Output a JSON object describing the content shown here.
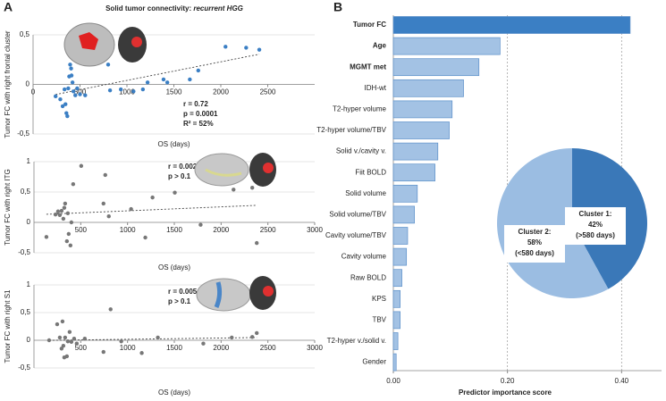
{
  "chart_data": [
    {
      "type": "scatter",
      "panel_label": "A",
      "title": "Solid tumor connectivity: ",
      "title_italic": "recurrent HGG",
      "ylabel": "Tumor FC with right frontal cluster",
      "xlabel": "OS (days)",
      "color": "#3b7fc4",
      "annotations": [
        "r = 0.72",
        "p = 0.0001",
        "R² = 52%"
      ],
      "xlim": [
        0,
        3000
      ],
      "xticks": [
        0,
        500,
        1000,
        1500,
        2000,
        2500
      ],
      "ylim": [
        -0.5,
        0.5
      ],
      "yticks": [
        {
          "value": -0.5,
          "label": "-0,5"
        },
        0,
        {
          "value": 0.5,
          "label": "0,5"
        }
      ],
      "x": [
        240,
        290,
        315,
        335,
        345,
        355,
        365,
        375,
        385,
        395,
        405,
        410,
        420,
        430,
        450,
        470,
        500,
        555,
        670,
        800,
        820,
        935,
        1070,
        1170,
        1220,
        1390,
        1430,
        1670,
        1760,
        2050,
        2270,
        2410
      ],
      "values": [
        -0.12,
        -0.15,
        -0.22,
        -0.05,
        -0.2,
        -0.29,
        -0.32,
        -0.04,
        0.08,
        0.2,
        0.16,
        0.09,
        0.02,
        -0.07,
        -0.11,
        -0.04,
        -0.1,
        -0.11,
        0.22,
        0.2,
        -0.06,
        -0.05,
        -0.07,
        -0.05,
        0.02,
        0.05,
        0.02,
        0.05,
        0.14,
        0.38,
        0.37,
        0.35
      ]
    },
    {
      "type": "scatter",
      "ylabel": "Tumor FC with right ITG",
      "xlabel": "OS (days)",
      "color": "#777777",
      "annotations": [
        "r = 0.002",
        "p > 0.1"
      ],
      "xlim": [
        0,
        3000
      ],
      "xticks": [
        500,
        1000,
        1500,
        2000,
        2500,
        3000
      ],
      "ylim": [
        -0.5,
        1
      ],
      "yticks": [
        {
          "value": -0.5,
          "label": "-0,5"
        },
        0,
        {
          "value": 0.5,
          "label": "0,5"
        },
        1
      ],
      "x": [
        133,
        230,
        257,
        276,
        295,
        314,
        324,
        333,
        352,
        362,
        371,
        390,
        400,
        419,
        505,
        743,
        762,
        800,
        1038,
        1190,
        1267,
        1505,
        1781,
        2133,
        2333,
        2381
      ],
      "values": [
        -0.24,
        0.13,
        0.18,
        0.12,
        0.19,
        0.06,
        0.24,
        0.31,
        -0.31,
        0.15,
        -0.19,
        -0.38,
        0.0,
        0.63,
        0.93,
        0.31,
        0.78,
        0.1,
        0.22,
        -0.25,
        0.41,
        0.49,
        -0.04,
        0.54,
        0.57,
        -0.34
      ]
    },
    {
      "type": "scatter",
      "ylabel": "Tumor FC with right S1",
      "xlabel": "OS (days)",
      "color": "#777777",
      "annotations": [
        "r = 0.005",
        "p > 0.1"
      ],
      "xlim": [
        0,
        3000
      ],
      "xticks": [
        500,
        1000,
        1500,
        2000,
        2500,
        3000
      ],
      "ylim": [
        -0.5,
        1
      ],
      "yticks": [
        {
          "value": -0.5,
          "label": "-0,5"
        },
        0,
        {
          "value": 0.5,
          "label": "0,5"
        },
        1
      ],
      "x": [
        162,
        248,
        276,
        295,
        305,
        314,
        324,
        333,
        352,
        362,
        381,
        400,
        429,
        457,
        543,
        743,
        819,
        933,
        1152,
        1324,
        1810,
        2114,
        2333,
        2381
      ],
      "values": [
        0,
        0.29,
        0.05,
        -0.15,
        0.34,
        -0.1,
        -0.31,
        0.05,
        -0.29,
        -0.02,
        0.15,
        -0.03,
        0.03,
        -0.06,
        0.03,
        -0.21,
        0.56,
        -0.02,
        -0.23,
        0.05,
        -0.06,
        0.05,
        0.06,
        0.13
      ]
    },
    {
      "type": "hbar",
      "panel_label": "B",
      "xlabel": "Predictor importance score",
      "categories": [
        "Tumor FC",
        "Age",
        "MGMT met",
        "IDH-wt",
        "T2-hyper volume",
        "T2-hyper volume/TBV",
        "Solid v./cavity v.",
        "Fiit BOLD",
        "Solid volume",
        "Solid volume/TBV",
        "Cavity volume/TBV",
        "Cavity volume",
        "Raw BOLD",
        "KPS",
        "TBV",
        "T2-hyper v./solid v.",
        "Gender"
      ],
      "bold": [
        true,
        true,
        true,
        false,
        false,
        false,
        false,
        false,
        false,
        false,
        false,
        false,
        false,
        false,
        false,
        false,
        false
      ],
      "values": [
        0.415,
        0.187,
        0.15,
        0.123,
        0.103,
        0.098,
        0.078,
        0.073,
        0.042,
        0.037,
        0.025,
        0.023,
        0.015,
        0.012,
        0.012,
        0.008,
        0.005
      ],
      "colors": [
        "#3b7fc4",
        "#a3c2e4",
        "#a3c2e4",
        "#a3c2e4",
        "#a3c2e4",
        "#a3c2e4",
        "#a3c2e4",
        "#a3c2e4",
        "#a3c2e4",
        "#a3c2e4",
        "#a3c2e4",
        "#a3c2e4",
        "#a3c2e4",
        "#a3c2e4",
        "#a3c2e4",
        "#a3c2e4",
        "#a3c2e4"
      ],
      "xlim": [
        0,
        0.47
      ],
      "xticks": [
        {
          "value": 0,
          "label": "0.00"
        },
        {
          "value": 0.2,
          "label": "0.20"
        },
        {
          "value": 0.4,
          "label": "0.40"
        }
      ],
      "grid": true
    },
    {
      "type": "pie",
      "categories": [
        "Cluster 1:",
        "Cluster 2:"
      ],
      "values": [
        42,
        58
      ],
      "value_labels": [
        "42%",
        "58%"
      ],
      "sublabels": [
        "(>580 days)",
        "(<580 days)"
      ],
      "colors": [
        "#3a78b8",
        "#9bbde2"
      ]
    }
  ]
}
